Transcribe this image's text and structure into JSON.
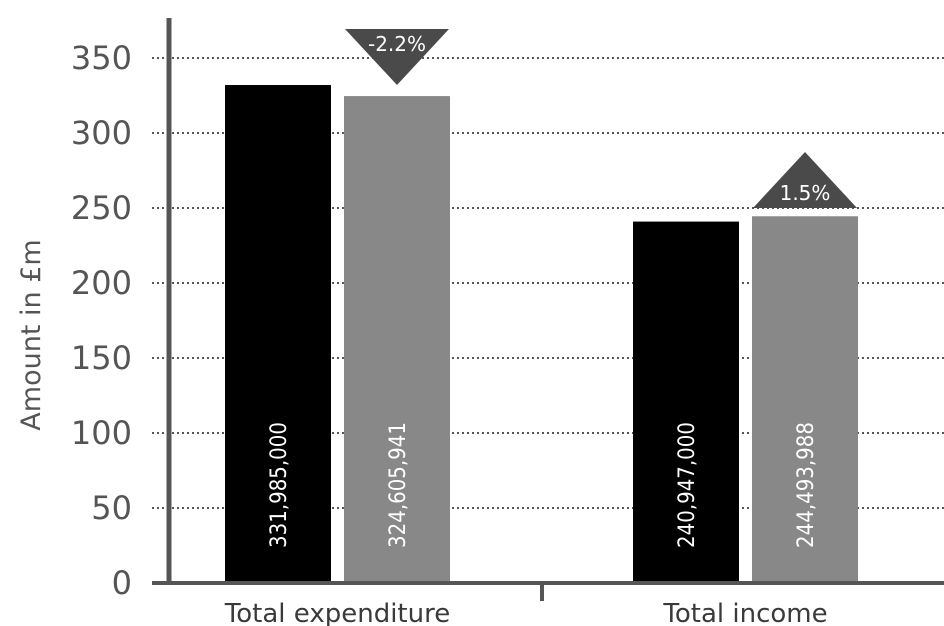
{
  "chart_data": {
    "type": "bar",
    "ylabel": "Amount in £m",
    "ylim": [
      0,
      350
    ],
    "yticks": [
      "0",
      "50",
      "100",
      "150",
      "200",
      "250",
      "300",
      "350"
    ],
    "grid": true,
    "categories": [
      "Total expenditure",
      "Total income"
    ],
    "series": [
      {
        "color": "#000000",
        "values": [
          331.985,
          240.947
        ],
        "labels": [
          "331,985,000",
          "240,947,000"
        ]
      },
      {
        "color": "#888888",
        "values": [
          324.605941,
          244.493988
        ],
        "labels": [
          "324,605,941",
          "244,493,988"
        ]
      }
    ],
    "changes": [
      {
        "category": "Total expenditure",
        "label": "-2.2%",
        "direction": "down"
      },
      {
        "category": "Total income",
        "label": "1.5%",
        "direction": "up"
      }
    ],
    "colors": {
      "axis": "#555555",
      "grid": "#555555",
      "marker": "#4a4a4a"
    }
  }
}
